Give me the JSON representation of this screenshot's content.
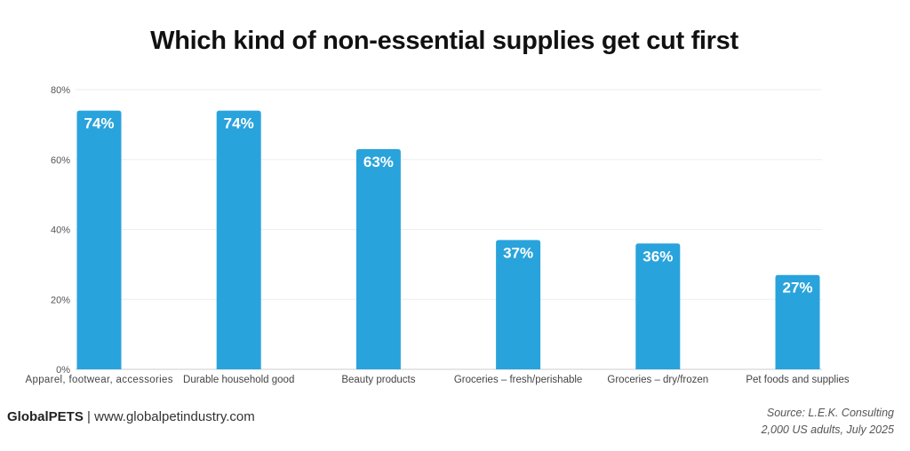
{
  "chart_data": {
    "type": "bar",
    "title": "Which kind of non-essential supplies get cut first",
    "categories": [
      "Apparel, footwear, accessories",
      "Durable household good",
      "Beauty products",
      "Groceries – fresh/perishable",
      "Groceries – dry/frozen",
      "Pet foods and supplies"
    ],
    "values": [
      74,
      74,
      63,
      37,
      36,
      27
    ],
    "data_labels": [
      "74%",
      "74%",
      "63%",
      "37%",
      "36%",
      "27%"
    ],
    "ylim": [
      0,
      80
    ],
    "yticks": [
      0,
      20,
      40,
      60,
      80
    ],
    "ytick_labels": [
      "0%",
      "20%",
      "40%",
      "60%",
      "80%"
    ],
    "xlabel": "",
    "ylabel": "",
    "grid": true,
    "bar_color": "#29a3dc"
  },
  "footer": {
    "brand": "GlobalPETS",
    "separator": "|",
    "url": "www.globalpetindustry.com",
    "source": "Source: L.E.K. Consulting",
    "sample": "2,000 US adults, July 2025"
  }
}
